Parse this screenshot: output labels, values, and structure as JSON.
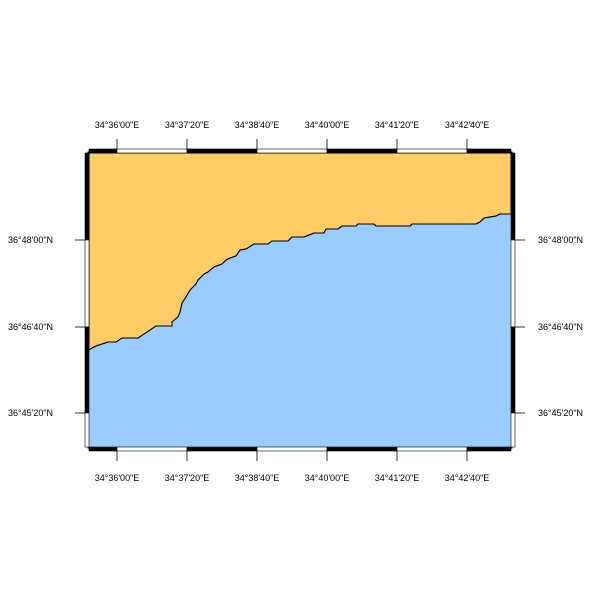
{
  "map": {
    "colors": {
      "land": "#ffcc66",
      "water": "#99ccff",
      "frame": "#000000",
      "coastline": "#000000",
      "background": "#ffffff"
    },
    "lon_ticks_top": [
      "34°36'00\"E",
      "34°37'20\"E",
      "34°38'40\"E",
      "34°40'00\"E",
      "34°41'20\"E",
      "34°42'40\"E"
    ],
    "lon_ticks_bottom": [
      "34°36'00\"E",
      "34°37'20\"E",
      "34°38'40\"E",
      "34°40'00\"E",
      "34°41'20\"E",
      "34°42'40\"E"
    ],
    "lat_ticks_left": [
      "36°48'00\"N",
      "36°46'40\"N",
      "36°45'20\"N"
    ],
    "lat_ticks_right": [
      "36°48'00\"N",
      "36°46'40\"N",
      "36°45'20\"N"
    ]
  }
}
